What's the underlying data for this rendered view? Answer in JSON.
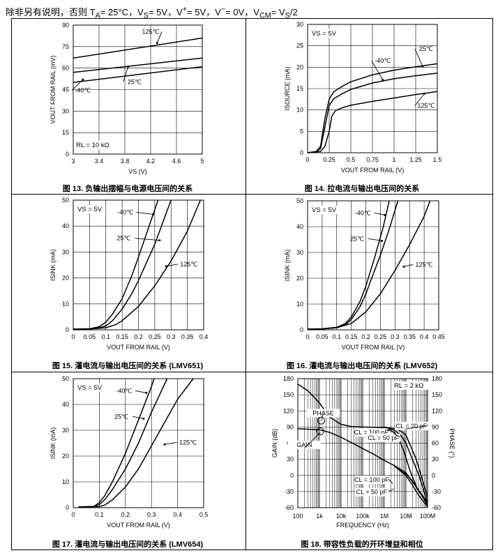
{
  "header": {
    "text": "除非另有说明，否则 T",
    "ta_sub": "A",
    "rest1": "= 25°C，V",
    "vs_sub": "S",
    "rest2": "= 5V，V",
    "vp_sup": "+",
    "rest3": "= 5V，V",
    "vm_sup": "−",
    "rest4": "= 0V，V",
    "vcm_sub": "CM",
    "rest5": "= V",
    "vs2_sub": "S",
    "rest6": "/2"
  },
  "captions": [
    "图 13. 负输出摆幅与电源电压间的关系",
    "图 14. 拉电流与输出电压间的关系",
    "图 15. 灌电流与输出电压间的关系 (LMV651)",
    "图 16. 灌电流与输出电压间的关系 (LMV652)",
    "图 17. 灌电流与输出电压间的关系 (LMV654)",
    "图 18. 带容性负载的开环增益和相位"
  ],
  "chart_data": [
    {
      "type": "line",
      "title": "图 13. 负输出摆幅与电源电压间的关系",
      "xlabel": "VS (V)",
      "ylabel": "VOUT FROM RAIL (mV)",
      "xlim": [
        3,
        5
      ],
      "ylim": [
        0,
        90
      ],
      "xticks": [
        "3",
        "3.4",
        "3.8",
        "4.2",
        "4.6",
        "5"
      ],
      "yticks": [
        "0",
        "15",
        "30",
        "45",
        "60",
        "75",
        "90"
      ],
      "annotation": "RL = 10 kΩ",
      "series": [
        {
          "name": "125℃",
          "x": [
            3,
            5
          ],
          "y": [
            67,
            81
          ]
        },
        {
          "name": "25℃",
          "x": [
            3,
            5
          ],
          "y": [
            57,
            67
          ]
        },
        {
          "name": "-40℃",
          "x": [
            3,
            5
          ],
          "y": [
            50,
            61
          ]
        }
      ]
    },
    {
      "type": "line",
      "title": "图 14. 拉电流与输出电压间的关系",
      "xlabel": "VOUT FROM RAIL (V)",
      "ylabel": "ISOURCE (mA)",
      "xlim": [
        0,
        1.5
      ],
      "ylim": [
        0,
        30
      ],
      "xticks": [
        "0",
        "0.25",
        "0.5",
        "0.75",
        "1",
        "1.25",
        "1.5"
      ],
      "yticks": [
        "0",
        "5",
        "10",
        "15",
        "20",
        "25",
        "30"
      ],
      "annotation": "VS = 5V",
      "series": [
        {
          "name": "25℃",
          "x": [
            0,
            0.1,
            0.15,
            0.2,
            0.25,
            0.3,
            0.4,
            0.5,
            0.75,
            1,
            1.25,
            1.5
          ],
          "y": [
            0,
            0.3,
            1.5,
            8,
            12.5,
            14.2,
            15.5,
            16.6,
            18.2,
            19.3,
            20.1,
            20.8
          ]
        },
        {
          "name": "-40℃",
          "x": [
            0,
            0.1,
            0.15,
            0.2,
            0.25,
            0.3,
            0.4,
            0.5,
            0.75,
            1,
            1.25,
            1.5
          ],
          "y": [
            0,
            0.2,
            1,
            6,
            11,
            12.6,
            13.8,
            14.8,
            16.3,
            17.3,
            18,
            18.6
          ]
        },
        {
          "name": "125℃",
          "x": [
            0,
            0.15,
            0.2,
            0.25,
            0.28,
            0.32,
            0.4,
            0.5,
            0.75,
            1,
            1.25,
            1.5
          ],
          "y": [
            0,
            0.3,
            1.5,
            5,
            8.5,
            9.8,
            10.5,
            11.1,
            12,
            12.8,
            13.6,
            14.3
          ]
        }
      ]
    },
    {
      "type": "line",
      "title": "图 15. 灌电流与输出电压间的关系 (LMV651)",
      "xlabel": "VOUT FROM RAIL (V)",
      "ylabel": "ISINK (mA)",
      "xlim": [
        0,
        0.4
      ],
      "ylim": [
        0,
        50
      ],
      "xticks": [
        "0",
        "0.05",
        "0.1",
        "0.15",
        "0.2",
        "0.25",
        "0.3",
        "0.35",
        "0.4"
      ],
      "yticks": [
        "0",
        "10",
        "20",
        "30",
        "40",
        "50"
      ],
      "annotation": "VS = 5V",
      "series": [
        {
          "name": "-40℃",
          "x": [
            0,
            0.05,
            0.08,
            0.1,
            0.12,
            0.15,
            0.18,
            0.2,
            0.23,
            0.26
          ],
          "y": [
            0.3,
            0.4,
            1.2,
            3,
            6,
            12,
            21,
            28,
            39,
            50
          ]
        },
        {
          "name": "25℃",
          "x": [
            0,
            0.05,
            0.08,
            0.1,
            0.12,
            0.15,
            0.18,
            0.2,
            0.25,
            0.3
          ],
          "y": [
            0.3,
            0.4,
            0.8,
            1.5,
            3.5,
            8,
            14,
            19,
            33,
            50
          ]
        },
        {
          "name": "125℃",
          "x": [
            0,
            0.05,
            0.1,
            0.13,
            0.15,
            0.2,
            0.25,
            0.3,
            0.35,
            0.39
          ],
          "y": [
            0.3,
            0.3,
            0.8,
            2,
            3.5,
            9,
            17,
            26.5,
            38,
            50
          ]
        }
      ]
    },
    {
      "type": "line",
      "title": "图 16. 灌电流与输出电压间的关系 (LMV652)",
      "xlabel": "VOUT FROM RAIL (V)",
      "ylabel": "ISINK (mA)",
      "xlim": [
        0,
        0.45
      ],
      "ylim": [
        0,
        50
      ],
      "xticks": [
        "0",
        "0.05",
        "0.1",
        "0.15",
        "0.2",
        "0.25",
        "0.3",
        "0.35",
        "0.4",
        "0.45"
      ],
      "yticks": [
        "0",
        "10",
        "20",
        "30",
        "40",
        "50"
      ],
      "annotation": "VS = 5V",
      "series": [
        {
          "name": "-40℃",
          "x": [
            0,
            0.05,
            0.1,
            0.13,
            0.15,
            0.18,
            0.2,
            0.23,
            0.26,
            0.28
          ],
          "y": [
            0.3,
            0.4,
            1,
            2.5,
            5,
            11,
            17,
            28,
            40,
            50
          ]
        },
        {
          "name": "25℃",
          "x": [
            0,
            0.05,
            0.1,
            0.13,
            0.15,
            0.18,
            0.2,
            0.25,
            0.28,
            0.31
          ],
          "y": [
            0.3,
            0.4,
            0.8,
            2,
            4,
            9,
            14,
            29,
            39,
            50
          ]
        },
        {
          "name": "125℃",
          "x": [
            0,
            0.05,
            0.1,
            0.15,
            0.2,
            0.25,
            0.3,
            0.35,
            0.4,
            0.42
          ],
          "y": [
            0.3,
            0.3,
            0.8,
            2.5,
            7,
            14,
            23,
            33,
            44,
            50
          ]
        }
      ]
    },
    {
      "type": "line",
      "title": "图 17. 灌电流与输出电压间的关系 (LMV654)",
      "xlabel": "VOUT FROM RAIL (V)",
      "ylabel": "ISINK (mA)",
      "xlim": [
        0,
        0.5
      ],
      "ylim": [
        0,
        50
      ],
      "xticks": [
        "0",
        "0.1",
        "0.2",
        "0.3",
        "0.4",
        "0.5"
      ],
      "yticks": [
        "0",
        "10",
        "20",
        "30",
        "40",
        "50"
      ],
      "annotation": "VS = 5V",
      "series": [
        {
          "name": "-40℃",
          "x": [
            0.02,
            0.08,
            0.1,
            0.12,
            0.15,
            0.2,
            0.25,
            0.3,
            0.31
          ],
          "y": [
            0.3,
            0.5,
            2,
            4.5,
            10,
            21,
            34,
            47,
            50
          ]
        },
        {
          "name": "25℃",
          "x": [
            0.02,
            0.08,
            0.1,
            0.12,
            0.15,
            0.2,
            0.25,
            0.3,
            0.36
          ],
          "y": [
            0.3,
            0.4,
            1.2,
            3,
            7,
            15,
            25,
            37,
            50
          ]
        },
        {
          "name": "125℃",
          "x": [
            0.02,
            0.1,
            0.12,
            0.15,
            0.2,
            0.25,
            0.3,
            0.35,
            0.4,
            0.46
          ],
          "y": [
            0.3,
            0.4,
            1,
            3,
            8,
            15,
            24,
            33,
            42,
            50
          ]
        }
      ]
    },
    {
      "type": "line",
      "title": "图 18. 带容性负载的开环增益和相位",
      "xlabel": "FREQUENCY (Hz)",
      "ylabel": "GAIN (dB)",
      "y2label": "PHASE (°)",
      "xscale": "log",
      "xlim": [
        100,
        100000000
      ],
      "ylim": [
        -60,
        180
      ],
      "y2lim": [
        -60,
        180
      ],
      "xticks": [
        "100",
        "1k",
        "10k",
        "100k",
        "1M",
        "10M",
        "100M"
      ],
      "yticks": [
        "-60",
        "-30",
        "0",
        "30",
        "60",
        "90",
        "120",
        "150",
        "180"
      ],
      "annotation": "RL = 2 kΩ",
      "labels": [
        "PHASE",
        "GAIN",
        "CL = 20 pF",
        "CL = 100 pF",
        "CL = 50 pF",
        "CL = 100 pF",
        "CL = 50 pF"
      ],
      "series": [
        {
          "name": "PHASE",
          "x": [
            100,
            300,
            1000,
            3000,
            10000,
            30000,
            100000,
            300000,
            1000000,
            3000000,
            6000000,
            10000000,
            30000000,
            100000000
          ],
          "y": [
            170,
            157,
            135,
            108,
            95,
            91,
            90,
            89.5,
            89,
            87,
            82,
            75,
            30,
            -40
          ]
        },
        {
          "name": "PHASE CL=50pF",
          "x": [
            1000000,
            3000000,
            6000000,
            10000000,
            20000000,
            40000000,
            100000000
          ],
          "y": [
            89,
            84,
            74,
            60,
            30,
            0,
            -50
          ]
        },
        {
          "name": "PHASE CL=100pF",
          "x": [
            1000000,
            3000000,
            5000000,
            8000000,
            15000000,
            30000000,
            100000000
          ],
          "y": [
            88,
            80,
            65,
            45,
            10,
            -20,
            -55
          ]
        },
        {
          "name": "GAIN",
          "x": [
            100,
            1000,
            3000,
            10000,
            30000,
            100000,
            300000,
            1000000,
            3000000,
            10000000,
            30000000,
            100000000
          ],
          "y": [
            87,
            85,
            80,
            71,
            61,
            50,
            40,
            28,
            18,
            5,
            -22,
            -50
          ]
        },
        {
          "name": "GAIN CL=50pF",
          "x": [
            3000000,
            10000000,
            20000000,
            40000000,
            100000000
          ],
          "y": [
            17,
            3,
            -10,
            -30,
            -52
          ]
        },
        {
          "name": "GAIN CL=100pF",
          "x": [
            3000000,
            10000000,
            20000000,
            40000000,
            100000000
          ],
          "y": [
            17,
            0,
            -18,
            -38,
            -58
          ]
        }
      ]
    }
  ]
}
